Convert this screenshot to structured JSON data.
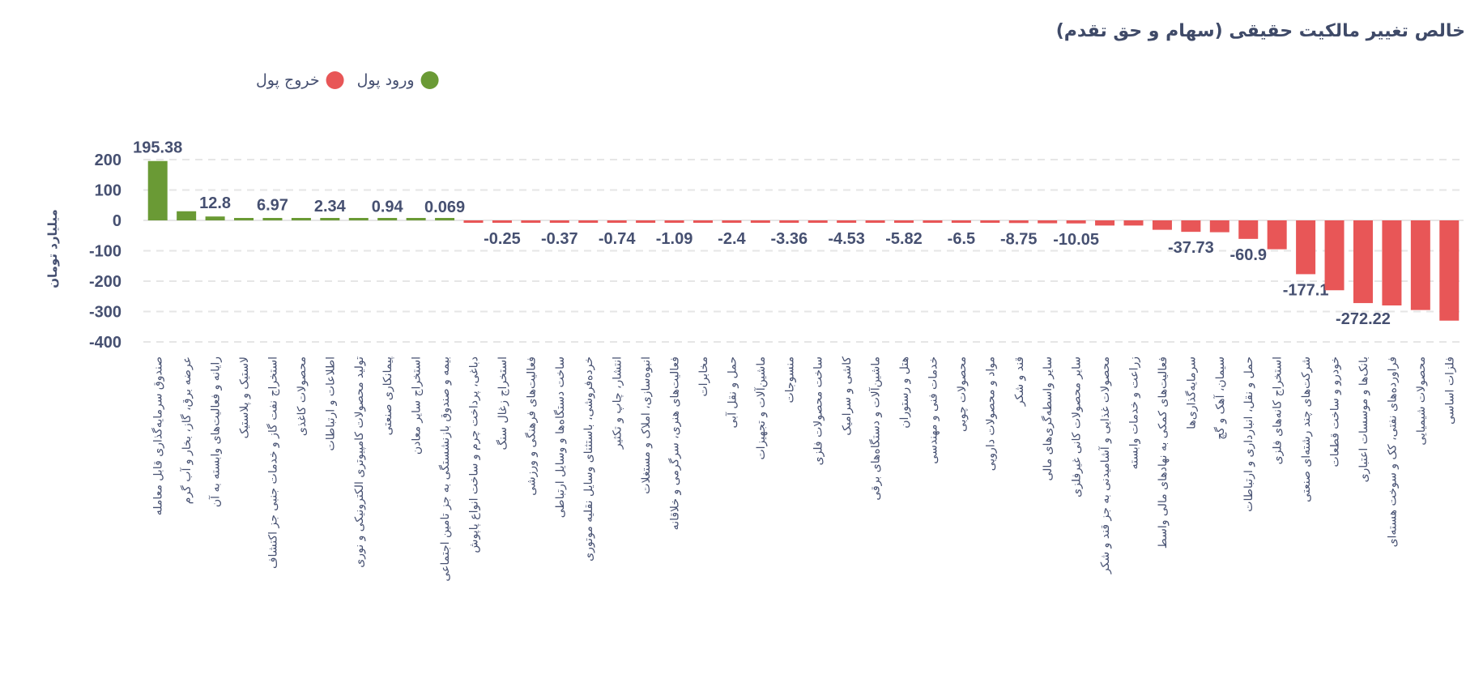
{
  "title": "خالص تغییر مالکیت حقیقی (سهام و حق تقدم)",
  "legend": [
    {
      "label": "ورود پول",
      "color": "#6a9a35"
    },
    {
      "label": "خروج پول",
      "color": "#e85657"
    }
  ],
  "chart_data": {
    "type": "bar",
    "title": "خالص تغییر مالکیت حقیقی (سهام و حق تقدم)",
    "ylabel": "میلیارد تومان",
    "ylim": [
      -400,
      200
    ],
    "yticks": [
      "200",
      "100",
      "0",
      "-100",
      "-200",
      "-300",
      "-400"
    ],
    "ytick_values": [
      200,
      100,
      0,
      -100,
      -200,
      -300,
      -400
    ],
    "grid": true,
    "legend_position": "top-left",
    "positive_color": "#6a9a35",
    "negative_color": "#e85657",
    "categories": [
      "صندوق سرمایه‌گذاری قابل معامله",
      "عرضه برق، گاز، بخار و آب گرم",
      "رایانه و فعالیت‌های وابسته به آن",
      "لاستیک و پلاستیک",
      "استخراج نفت گاز و خدمات جنبی جز اکتشاف",
      "محصولات کاغذی",
      "اطلاعات و ارتباطات",
      "تولید محصولات کامپیوتری الکترونیکی و نوری",
      "پیمانکاری صنعتی",
      "استخراج سایر معادن",
      "بیمه و صندوق بازنشستگی به جز تامین اجتماعی",
      "دباغی، پرداخت چرم و ساخت انواع پاپوش",
      "استخراج زغال سنگ",
      "فعالیت‌های فرهنگی و ورزشی",
      "ساخت دستگاه‌ها و وسایل ارتباطی",
      "خرده‌فروشی، باستثنای وسایل نقلیه موتوری",
      "انتشار، چاپ و تکثیر",
      "انبوه‌سازی، املاک و مستغلات",
      "فعالیت‌های هنری، سرگرمی و خلاقانه",
      "مخابرات",
      "حمل و نقل آبی",
      "ماشین‌آلات و تجهیزات",
      "منسوجات",
      "ساخت محصولات فلزی",
      "کاشی و سرامیک",
      "ماشین‌آلات و دستگاه‌های برقی",
      "هتل و رستوران",
      "خدمات فنی و مهندسی",
      "محصولات چوبی",
      "مواد و محصولات دارویی",
      "قند و شکر",
      "سایر واسطه‌گری‌های مالی",
      "سایر محصولات کانی غیرفلزی",
      "محصولات غذایی و آشامیدنی به جز قند و شکر",
      "زراعت و خدمات وابسته",
      "فعالیت‌های کمکی به نهادهای مالی واسط",
      "سرمایه‌گذاری‌ها",
      "سیمان، آهک و گچ",
      "حمل و نقل، انبارداری و ارتباطات",
      "استخراج کانه‌های فلزی",
      "شرکت‌های چند رشته‌ای صنعتی",
      "خودرو و ساخت قطعات",
      "بانک‌ها و موسسات اعتباری",
      "فراورده‌های نفتی، کک و سوخت هسته‌ای",
      "محصولات شیمیایی",
      "فلزات اساسی"
    ],
    "values": [
      195.38,
      30,
      12.8,
      8,
      6.97,
      4,
      2.34,
      1.5,
      0.94,
      0.5,
      0.069,
      -0.1,
      -0.25,
      -0.3,
      -0.37,
      -0.5,
      -0.74,
      -0.9,
      -1.09,
      -1.8,
      -2.4,
      -3,
      -3.36,
      -4,
      -4.53,
      -5.2,
      -5.82,
      -6.2,
      -6.5,
      -7.5,
      -8.75,
      -9.5,
      -10.05,
      -17,
      -17,
      -31,
      -37.73,
      -39,
      -60.9,
      -95,
      -177.1,
      -230,
      -272.22,
      -280,
      -295,
      -330
    ],
    "data_labels": [
      "195.38",
      "",
      "12.8",
      "",
      "6.97",
      "",
      "2.34",
      "",
      "0.94",
      "",
      "0.069",
      "",
      "-0.25",
      "",
      "-0.37",
      "",
      "-0.74",
      "",
      "-1.09",
      "",
      "-2.4",
      "",
      "-3.36",
      "",
      "-4.53",
      "",
      "-5.82",
      "",
      "-6.5",
      "",
      "-8.75",
      "",
      "-10.05",
      "",
      "",
      "",
      "-37.73",
      "",
      "-60.9",
      "",
      "-177.1",
      "",
      "-272.22",
      "",
      "",
      ""
    ]
  }
}
